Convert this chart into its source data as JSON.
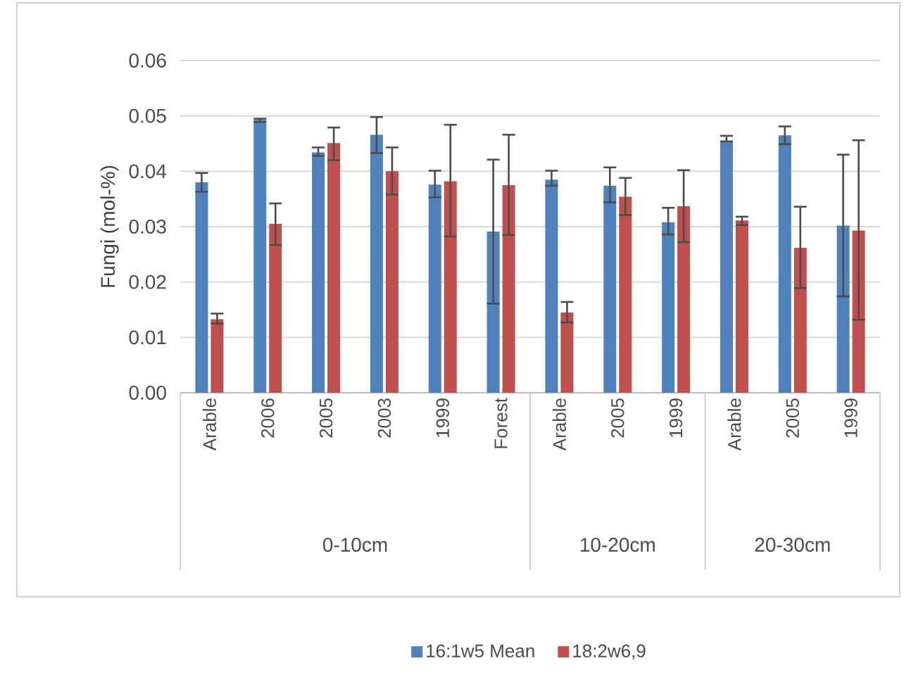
{
  "chart_data": {
    "type": "bar",
    "ylabel": "Fungi (mol-%)",
    "categories": [
      "Arable",
      "2006",
      "2005",
      "2003",
      "1999",
      "Forest",
      "Arable",
      "2005",
      "1999",
      "Arable",
      "2005",
      "1999"
    ],
    "annotations": [
      "0-10cm",
      "10-20cm",
      "20-30cm"
    ],
    "series": [
      {
        "name": "16:1w5 Mean",
        "color": "#4f81bd",
        "values": [
          0.038,
          0.0493,
          0.0434,
          0.0466,
          0.0376,
          0.0291,
          0.0385,
          0.0374,
          0.0308,
          0.0455,
          0.0465,
          0.0302
        ],
        "errors": [
          [
            0.0363,
            0.0397
          ],
          [
            0.0489,
            0.0495
          ],
          [
            0.0428,
            0.0443
          ],
          [
            0.0433,
            0.0498
          ],
          [
            0.0353,
            0.0401
          ],
          [
            0.0161,
            0.0421
          ],
          [
            0.0374,
            0.0401
          ],
          [
            0.0344,
            0.0407
          ],
          [
            0.0286,
            0.0334
          ],
          [
            0.0454,
            0.0464
          ],
          [
            0.0449,
            0.0481
          ],
          [
            0.0174,
            0.043
          ]
        ]
      },
      {
        "name": "18:2w6,9",
        "color": "#c0504d",
        "values": [
          0.0133,
          0.0305,
          0.0451,
          0.04,
          0.0382,
          0.0375,
          0.0145,
          0.0354,
          0.0337,
          0.0311,
          0.0262,
          0.0293
        ],
        "errors": [
          [
            0.0125,
            0.0143
          ],
          [
            0.0267,
            0.0342
          ],
          [
            0.042,
            0.0479
          ],
          [
            0.0358,
            0.0443
          ],
          [
            0.0282,
            0.0484
          ],
          [
            0.0285,
            0.0466
          ],
          [
            0.0127,
            0.0164
          ],
          [
            0.0321,
            0.0388
          ],
          [
            0.0272,
            0.0402
          ],
          [
            0.0303,
            0.0318
          ],
          [
            0.0189,
            0.0336
          ],
          [
            0.0132,
            0.0456
          ]
        ]
      }
    ],
    "ylim": [
      0,
      0.06
    ],
    "yticks": [
      {
        "value": 0,
        "label": "0.00"
      },
      {
        "value": 0.01,
        "label": "0.01"
      },
      {
        "value": 0.02,
        "label": "0.02"
      },
      {
        "value": 0.03,
        "label": "0.03"
      },
      {
        "value": 0.04,
        "label": "0.04"
      },
      {
        "value": 0.05,
        "label": "0.05"
      },
      {
        "value": 0.06,
        "label": "0.06"
      }
    ],
    "grid": "y",
    "legend": "bottom"
  }
}
